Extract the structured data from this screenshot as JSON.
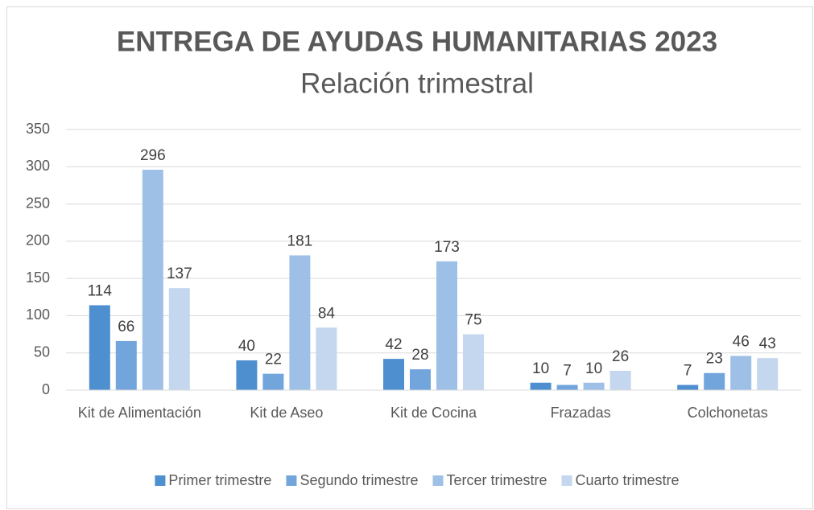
{
  "chart_data": {
    "type": "bar",
    "title": "ENTREGA DE AYUDAS HUMANITARIAS 2023",
    "subtitle": "Relación trimestral",
    "categories": [
      "Kit de Alimentación",
      "Kit de Aseo",
      "Kit de Cocina",
      "Frazadas",
      "Colchonetas"
    ],
    "series": [
      {
        "name": "Primer trimestre",
        "color": "#4e8fd0",
        "values": [
          114,
          40,
          42,
          10,
          7
        ]
      },
      {
        "name": "Segundo trimestre",
        "color": "#72a5dc",
        "values": [
          66,
          22,
          28,
          7,
          23
        ]
      },
      {
        "name": "Tercer trimestre",
        "color": "#9fc0e6",
        "values": [
          296,
          181,
          173,
          10,
          46
        ]
      },
      {
        "name": "Cuarto trimestre",
        "color": "#c4d7ee",
        "values": [
          137,
          84,
          75,
          26,
          43
        ]
      }
    ],
    "ylim": [
      0,
      350
    ],
    "yticks": [
      0,
      50,
      100,
      150,
      200,
      250,
      300,
      350
    ],
    "grid": true,
    "legend": "bottom"
  }
}
